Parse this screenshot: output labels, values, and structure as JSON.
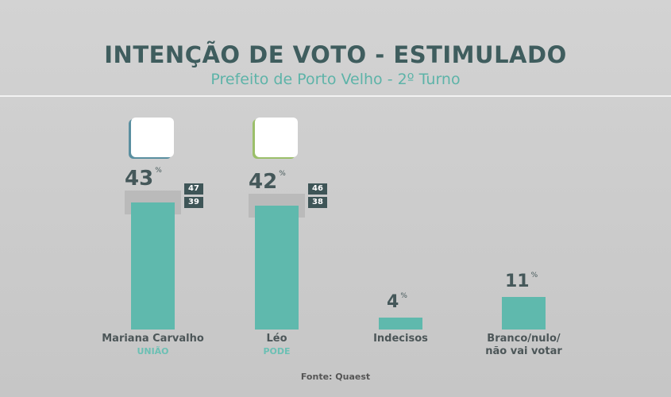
{
  "chart_data": {
    "type": "bar",
    "title": "INTENÇÃO DE VOTO - ESTIMULADO",
    "subtitle": "Prefeito de Porto Velho - 2º Turno",
    "categories": [
      "Mariana Carvalho",
      "Léo",
      "Indecisos",
      "Branco/nulo/\nnão vai votar"
    ],
    "parties": [
      "UNIÃO",
      "PODE",
      "",
      ""
    ],
    "values": [
      43,
      42,
      4,
      11
    ],
    "value_suffix": "%",
    "margin_high": [
      47,
      46,
      null,
      null
    ],
    "margin_low": [
      39,
      38,
      null,
      null
    ],
    "ylim": [
      0,
      50
    ],
    "grid": false,
    "source": "Fonte: Quaest",
    "colors": {
      "bar": "#5fb9ad",
      "margin_band": "#b5b5b5",
      "title": "#3f5d5e",
      "subtitle": "#5db3a8"
    }
  }
}
